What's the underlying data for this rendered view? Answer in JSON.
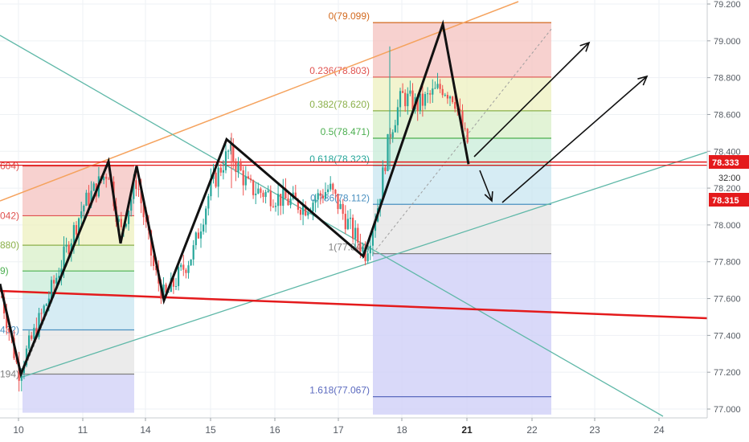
{
  "chart_data": {
    "type": "candlestick",
    "x_tick_labels": [
      "10",
      "11",
      "14",
      "15",
      "16",
      "17",
      "18",
      "21",
      "22",
      "23",
      "24"
    ],
    "y_tick_labels": [
      "79.200",
      "79.000",
      "78.800",
      "78.600",
      "78.400",
      "78.200",
      "78.000",
      "77.800",
      "77.600",
      "77.400",
      "77.200",
      "77.000"
    ],
    "y_ticks": [
      79.2,
      79.0,
      78.8,
      78.6,
      78.4,
      78.2,
      78.0,
      77.8,
      77.6,
      77.4,
      77.2,
      77.0
    ],
    "ylim": [
      76.97,
      79.24
    ],
    "price_labels": {
      "current": "78.333",
      "countdown": "32:00",
      "other": "78.315",
      "colors": {
        "current": "#e41a1c",
        "countdown": "#ffffff",
        "other": "#e41a1c"
      }
    },
    "fib_right": {
      "colors": [
        "#e8a09a",
        "#e8e89a",
        "#c8e8b0",
        "#b0e0c8",
        "#a8d8e8",
        "#c8c8c8",
        "#b0b0f0"
      ],
      "levels": [
        {
          "label": "0(79.099)",
          "value": 79.099,
          "color": "#d2691e"
        },
        {
          "label": "0.236(78.803)",
          "value": 78.803,
          "color": "#e0524f"
        },
        {
          "label": "0.382(78.620)",
          "value": 78.62,
          "color": "#8bb04a"
        },
        {
          "label": "0.5(78.471)",
          "value": 78.471,
          "color": "#4caf50"
        },
        {
          "label": "0.618(78.323)",
          "value": 78.323,
          "color": "#26a69a"
        },
        {
          "label": "0.786(78.112)",
          "value": 78.112,
          "color": "#4a90c0"
        },
        {
          "label": "1(77.844)",
          "value": 77.844,
          "color": "#808080"
        },
        {
          "label": "1.618(77.067)",
          "value": 77.067,
          "color": "#5b6abf"
        }
      ]
    },
    "fib_left": {
      "levels": [
        {
          "label": "604)",
          "value": 78.32,
          "color": "#e0524f"
        },
        {
          "label": "042)",
          "value": 78.05,
          "color": "#e0524f"
        },
        {
          "label": "880)",
          "value": 77.89,
          "color": "#8bb04a"
        },
        {
          "label": "9)",
          "value": 77.75,
          "color": "#4caf50"
        },
        {
          "label": "432)",
          "value": 77.43,
          "color": "#4a90c0"
        },
        {
          "label": "194)",
          "value": 77.19,
          "color": "#808080"
        }
      ]
    },
    "horizontal_levels": [
      78.333,
      78.315
    ],
    "zigzag_left": [
      [
        "10",
        77.19
      ],
      [
        "11",
        78.345
      ],
      [
        "11.6",
        77.9
      ],
      [
        "11.85",
        78.32
      ],
      [
        "14.3",
        77.59
      ],
      [
        "15.25",
        78.465
      ],
      [
        "17.4",
        77.83
      ],
      [
        "18.65",
        79.09
      ],
      [
        "21",
        78.33
      ]
    ]
  }
}
